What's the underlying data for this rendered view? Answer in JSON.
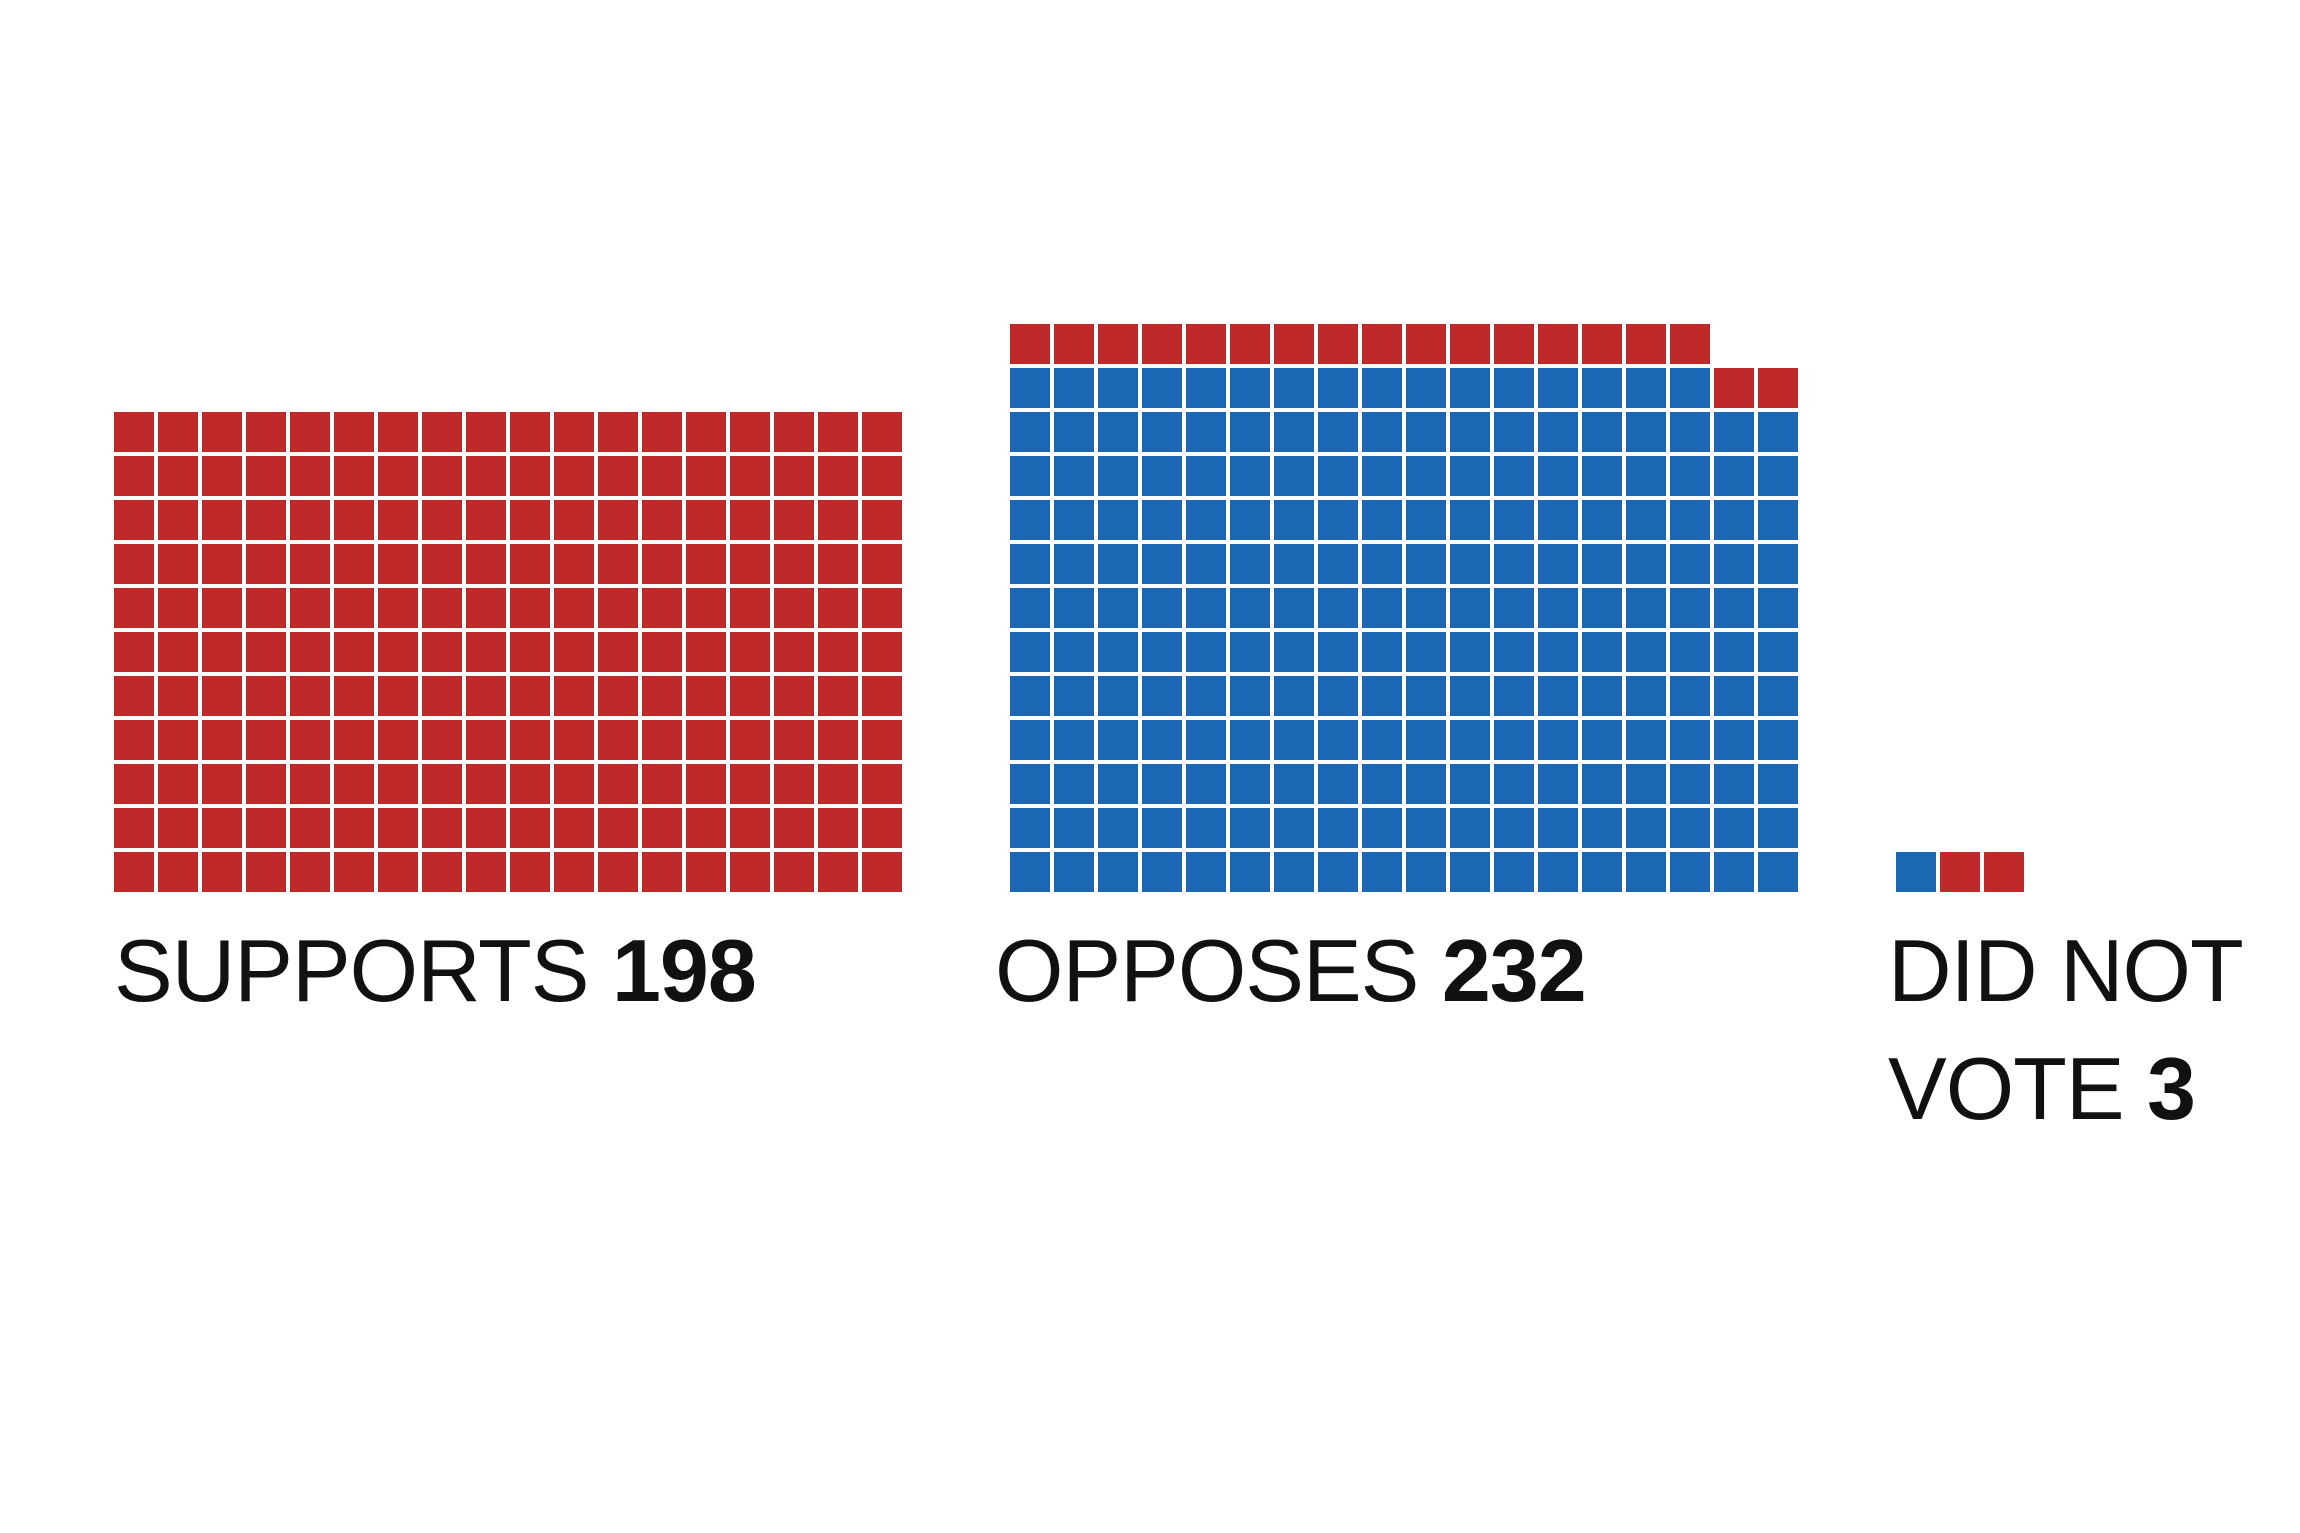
{
  "colors": {
    "republican": "#c0292a",
    "democrat": "#1c67b3",
    "background": "#ffffff",
    "text": "#111111"
  },
  "chart_data": {
    "type": "waffle",
    "groups": [
      {
        "label": "SUPPORTS",
        "count": "198",
        "total": 198,
        "composition": [
          {
            "party": "republican",
            "count": 198
          }
        ]
      },
      {
        "label": "OPPOSES",
        "count": "232",
        "total": 232,
        "composition": [
          {
            "party": "democrat",
            "count": 214
          },
          {
            "party": "republican",
            "count": 18
          }
        ]
      },
      {
        "label": "DID NOT VOTE",
        "count": "3",
        "total": 3,
        "composition": [
          {
            "party": "democrat",
            "count": 1
          },
          {
            "party": "republican",
            "count": 2
          }
        ]
      }
    ]
  }
}
